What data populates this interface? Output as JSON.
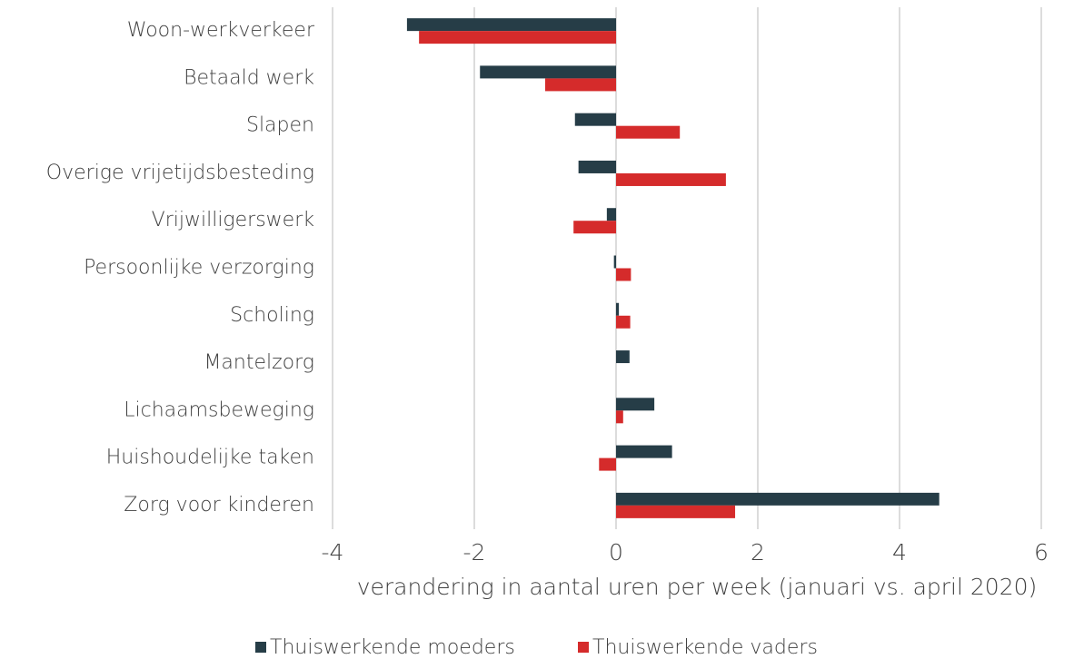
{
  "chart_data": {
    "type": "hbar",
    "categories": [
      "Woon-werkverkeer",
      "Betaald werk",
      "Slapen",
      "Overige vrijetijdsbesteding",
      "Vrijwilligerswerk",
      "Persoonlijke verzorging",
      "Scholing",
      "Mantelzorg",
      "Lichaamsbeweging",
      "Huishoudelijke taken",
      "Zorg voor kinderen"
    ],
    "series": [
      {
        "name": "Thuiswerkende moeders",
        "color": "#263d47",
        "values": [
          -2.95,
          -1.92,
          -0.58,
          -0.53,
          -0.13,
          -0.03,
          0.04,
          0.19,
          0.54,
          0.79,
          4.56
        ]
      },
      {
        "name": "Thuiswerkende vaders",
        "color": "#d52b2b",
        "values": [
          -2.78,
          -1.0,
          0.9,
          1.55,
          -0.6,
          0.21,
          0.2,
          0,
          0.1,
          -0.24,
          1.68
        ]
      }
    ],
    "xlabel": "verandering in aantal uren per week (januari vs. april 2020)",
    "xlim": [
      -4,
      6
    ],
    "xticks": [
      -4,
      -2,
      0,
      2,
      4,
      6
    ],
    "grid": true,
    "legend": "bottom"
  }
}
